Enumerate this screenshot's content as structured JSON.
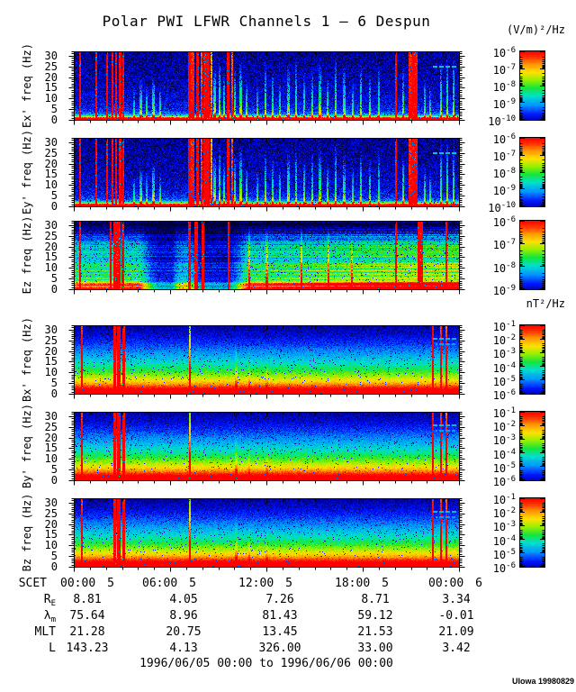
{
  "title": "Polar PWI LFWR Channels 1 — 6 Despun",
  "units": {
    "electric": "(V/m)²/Hz",
    "magnetic": "nT²/Hz"
  },
  "time_axis": {
    "prefix": "SCET",
    "ticks": [
      {
        "time": "00:00",
        "day": "5"
      },
      {
        "time": "06:00",
        "day": "5"
      },
      {
        "time": "12:00",
        "day": "5"
      },
      {
        "time": "18:00",
        "day": "5"
      },
      {
        "time": "00:00",
        "day": "6"
      }
    ]
  },
  "ephemeris": {
    "rows": [
      {
        "label": "R",
        "sub": "E",
        "values": [
          "8.81",
          "4.05",
          "7.26",
          "8.71",
          "3.34"
        ]
      },
      {
        "label": "λ",
        "sub": "m",
        "values": [
          "75.64",
          "8.96",
          "81.43",
          "59.12",
          "-0.01"
        ]
      },
      {
        "label": "MLT",
        "sub": "",
        "values": [
          "21.28",
          "20.75",
          "13.45",
          "21.53",
          "21.09"
        ]
      },
      {
        "label": "L",
        "sub": "",
        "values": [
          "143.23",
          "4.13",
          "326.00",
          "33.00",
          "3.42"
        ]
      }
    ]
  },
  "footer_range": "1996/06/05 00:00 to 1996/06/06 00:00",
  "credit": "UIowa 19980829",
  "chart_data": {
    "type": "heatmap",
    "title": "Polar PWI LFWR Channels 1 — 6 Despun",
    "x_start": "1996/06/05 00:00",
    "x_end": "1996/06/06 00:00",
    "x_tick_labels": [
      "00:00",
      "06:00",
      "12:00",
      "18:00",
      "00:00"
    ],
    "x_minor_tick_hours": 1,
    "ylim": [
      0,
      32
    ],
    "y_ticks": [
      0,
      5,
      10,
      15,
      20,
      25,
      30
    ],
    "colormap": [
      [
        0.0,
        "#000030"
      ],
      [
        0.1,
        "#000096"
      ],
      [
        0.2,
        "#0014ff"
      ],
      [
        0.32,
        "#0096ff"
      ],
      [
        0.44,
        "#00e1c8"
      ],
      [
        0.54,
        "#14e63c"
      ],
      [
        0.64,
        "#96f000"
      ],
      [
        0.74,
        "#ffe100"
      ],
      [
        0.84,
        "#ff9600"
      ],
      [
        0.92,
        "#ff3c00"
      ],
      [
        1.0,
        "#ff0000"
      ]
    ],
    "colorbars": {
      "e": [
        "10^-6",
        "10^-7",
        "10^-8",
        "10^-9",
        "10^-10"
      ],
      "ez": [
        "10^-6",
        "10^-7",
        "10^-8",
        "10^-9"
      ],
      "b": [
        "10^-1",
        "10^-2",
        "10^-3",
        "10^-4",
        "10^-5",
        "10^-6"
      ]
    },
    "profiles": {
      "e": [
        [
          0,
          1.15
        ],
        [
          0.025,
          0.95
        ],
        [
          0.05,
          0.55
        ],
        [
          0.08,
          0.3
        ],
        [
          0.12,
          0.22
        ],
        [
          0.25,
          0.16
        ],
        [
          0.5,
          0.13
        ],
        [
          0.75,
          0.115
        ],
        [
          1,
          0.1
        ]
      ],
      "ez": [
        [
          0,
          1.3
        ],
        [
          0.04,
          1.0
        ],
        [
          0.07,
          0.8
        ],
        [
          0.1,
          0.62
        ],
        [
          0.2,
          0.58
        ],
        [
          0.35,
          0.56
        ],
        [
          0.5,
          0.52
        ],
        [
          0.6,
          0.48
        ],
        [
          0.7,
          0.4
        ],
        [
          0.8,
          0.25
        ],
        [
          0.88,
          0.12
        ],
        [
          1,
          0.06
        ]
      ],
      "b": [
        [
          0,
          1.2
        ],
        [
          0.05,
          1.05
        ],
        [
          0.09,
          0.95
        ],
        [
          0.13,
          0.85
        ],
        [
          0.18,
          0.75
        ],
        [
          0.25,
          0.65
        ],
        [
          0.33,
          0.55
        ],
        [
          0.42,
          0.46
        ],
        [
          0.52,
          0.38
        ],
        [
          0.63,
          0.3
        ],
        [
          0.75,
          0.22
        ],
        [
          0.88,
          0.15
        ],
        [
          1,
          0.11
        ]
      ]
    },
    "tmods": {
      "ez": [
        [
          0,
          0.78
        ],
        [
          0.17,
          0.8
        ],
        [
          0.2,
          0.4
        ],
        [
          0.22,
          0.3
        ],
        [
          0.255,
          0.3
        ],
        [
          0.27,
          0.55
        ],
        [
          0.295,
          0.6
        ],
        [
          0.315,
          0.45
        ],
        [
          0.33,
          0.28
        ],
        [
          0.4,
          0.26
        ],
        [
          0.425,
          0.45
        ],
        [
          0.45,
          0.8
        ],
        [
          0.6,
          0.85
        ],
        [
          0.75,
          0.95
        ],
        [
          0.9,
          1.0
        ],
        [
          1,
          1.0
        ]
      ]
    },
    "hline_sets": {
      "ez": [
        [
          0.065,
          0.3
        ],
        [
          0.105,
          0.22
        ],
        [
          0.155,
          0.18
        ],
        [
          0.21,
          0.15
        ],
        [
          0.27,
          0.12
        ],
        [
          0.34,
          0.1
        ]
      ]
    },
    "dash_sets": {
      "e": [
        [
          0.93,
          0.992,
          0.78,
          0.4
        ]
      ],
      "b": [
        [
          0.93,
          0.995,
          0.82,
          0.38
        ],
        [
          0.94,
          0.99,
          0.74,
          0.34
        ]
      ]
    },
    "stripe_sets": {
      "e": [
        [
          0.016,
          2,
          1.25,
          0
        ],
        [
          0.058,
          2,
          1.25,
          0
        ],
        [
          0.085,
          2,
          1.2,
          0
        ],
        [
          0.1,
          2,
          1.25,
          0
        ],
        [
          0.109,
          2,
          1.1,
          0
        ],
        [
          0.118,
          3,
          1.25,
          0
        ],
        [
          0.127,
          2,
          1.2,
          0
        ],
        [
          0.155,
          2,
          0.4,
          0.45
        ],
        [
          0.172,
          3,
          0.5,
          0.6
        ],
        [
          0.188,
          2,
          0.45,
          0.5
        ],
        [
          0.205,
          3,
          0.55,
          0.65
        ],
        [
          0.222,
          2,
          0.4,
          0.5
        ],
        [
          0.298,
          3,
          1.0,
          0
        ],
        [
          0.308,
          4,
          0.85,
          0
        ],
        [
          0.32,
          3,
          1.2,
          0
        ],
        [
          0.33,
          2,
          0.8,
          0
        ],
        [
          0.338,
          3,
          1.25,
          0
        ],
        [
          0.347,
          4,
          1.0,
          0
        ],
        [
          0.356,
          2,
          0.7,
          0
        ],
        [
          0.365,
          3,
          0.6,
          0.8
        ],
        [
          0.378,
          2,
          0.5,
          0.95
        ],
        [
          0.39,
          2,
          0.45,
          0.7
        ],
        [
          0.4,
          3,
          1.25,
          0
        ],
        [
          0.409,
          2,
          0.8,
          0
        ],
        [
          0.418,
          2,
          0.5,
          0.8
        ],
        [
          0.432,
          3,
          0.55,
          0.9
        ],
        [
          0.447,
          2,
          0.45,
          0.6
        ],
        [
          0.475,
          2,
          0.4,
          0.55
        ],
        [
          0.497,
          2,
          0.5,
          0.9
        ],
        [
          0.515,
          2,
          0.45,
          0.75
        ],
        [
          0.535,
          2,
          0.4,
          0.6
        ],
        [
          0.555,
          3,
          0.5,
          0.85
        ],
        [
          0.575,
          2,
          0.45,
          0.95
        ],
        [
          0.597,
          2,
          0.5,
          0.7
        ],
        [
          0.617,
          2,
          0.45,
          0.8
        ],
        [
          0.638,
          3,
          0.5,
          0.9
        ],
        [
          0.658,
          2,
          0.45,
          0.65
        ],
        [
          0.678,
          2,
          0.5,
          0.95
        ],
        [
          0.7,
          3,
          0.45,
          0.8
        ],
        [
          0.722,
          2,
          0.4,
          0.6
        ],
        [
          0.745,
          2,
          0.5,
          0.85
        ],
        [
          0.768,
          2,
          0.45,
          0.7
        ],
        [
          0.79,
          2,
          0.4,
          0.9
        ],
        [
          0.836,
          2,
          1.25,
          0
        ],
        [
          0.855,
          2,
          0.5,
          0.8
        ],
        [
          0.872,
          3,
          0.85,
          0
        ],
        [
          0.88,
          5,
          1.15,
          0
        ],
        [
          0.889,
          3,
          0.9,
          0
        ],
        [
          0.91,
          2,
          0.45,
          0.6
        ],
        [
          0.925,
          2,
          0.4,
          0.5
        ],
        [
          0.952,
          2,
          0.45,
          1
        ],
        [
          0.968,
          2,
          0.5,
          1
        ],
        [
          0.985,
          2,
          0.45,
          1
        ]
      ],
      "ez": [
        [
          0.016,
          2,
          1.3,
          0
        ],
        [
          0.095,
          2,
          1.3,
          0
        ],
        [
          0.107,
          4,
          1.3,
          0
        ],
        [
          0.116,
          4,
          1.3,
          0
        ],
        [
          0.126,
          3,
          1.3,
          0
        ],
        [
          0.298,
          3,
          1.3,
          0
        ],
        [
          0.316,
          4,
          1.2,
          0
        ],
        [
          0.335,
          3,
          1.3,
          0
        ],
        [
          0.4,
          2,
          1.2,
          0
        ],
        [
          0.455,
          2,
          0.55,
          0.95
        ],
        [
          0.5,
          2,
          0.5,
          0.9
        ],
        [
          0.59,
          2,
          0.55,
          0.95
        ],
        [
          0.66,
          2,
          0.5,
          0.9
        ],
        [
          0.72,
          2,
          0.45,
          0.8
        ],
        [
          0.836,
          2,
          1.3,
          0
        ],
        [
          0.895,
          4,
          1.25,
          0
        ],
        [
          0.903,
          3,
          1.0,
          0
        ],
        [
          0.965,
          2,
          1.2,
          0
        ]
      ],
      "b": [
        [
          0.02,
          2,
          0.8,
          0
        ],
        [
          0.104,
          3,
          0.85,
          0
        ],
        [
          0.116,
          4,
          1.0,
          0
        ],
        [
          0.128,
          3,
          0.85,
          0
        ],
        [
          0.3,
          2,
          0.5,
          0
        ],
        [
          0.42,
          3,
          0.15,
          0.8
        ],
        [
          0.455,
          2,
          0.12,
          0.7
        ],
        [
          0.5,
          2,
          0.1,
          0.6
        ],
        [
          0.93,
          2,
          0.85,
          0
        ],
        [
          0.953,
          2,
          0.8,
          0
        ],
        [
          0.966,
          2,
          0.75,
          0
        ]
      ]
    },
    "panels": [
      {
        "id": "ex",
        "ylabel": "Ex' freq (Hz)",
        "unit": "(V/m)²/Hz",
        "colorbar": "e",
        "render": {
          "seed": 11,
          "profile": "e",
          "stripes": "e",
          "dashes": "e",
          "noise": 0.09,
          "speckle": 0.1
        }
      },
      {
        "id": "ey",
        "ylabel": "Ey' freq (Hz)",
        "unit": "(V/m)²/Hz",
        "colorbar": "e",
        "render": {
          "seed": 23,
          "profile": "e",
          "stripes": "e",
          "dashes": "e",
          "noise": 0.09,
          "speckle": 0.1
        }
      },
      {
        "id": "ez",
        "ylabel": "Ez freq (Hz)",
        "unit": "(V/m)²/Hz",
        "colorbar": "ez",
        "render": {
          "seed": 37,
          "profile": "ez",
          "stripes": "ez",
          "tmod": "ez",
          "hlines": "ez",
          "noise": 0.07,
          "speckle": 0.07,
          "rowNoise": 0.12
        }
      },
      {
        "id": "bx",
        "ylabel": "Bx' freq (Hz)",
        "unit": "nT²/Hz",
        "colorbar": "b",
        "render": {
          "seed": 51,
          "profile": "b",
          "stripes": "b",
          "dashes": "b",
          "noise": 0.05,
          "speckle": 0.05
        }
      },
      {
        "id": "by",
        "ylabel": "By' freq (Hz)",
        "unit": "nT²/Hz",
        "colorbar": "b",
        "render": {
          "seed": 67,
          "profile": "b",
          "stripes": "b",
          "dashes": "b",
          "noise": 0.05,
          "speckle": 0.05
        }
      },
      {
        "id": "bz",
        "ylabel": "Bz freq (Hz)",
        "unit": "nT²/Hz",
        "colorbar": "b",
        "render": {
          "seed": 83,
          "profile": "b",
          "stripes": "b",
          "dashes": "b",
          "noise": 0.05,
          "speckle": 0.05
        }
      }
    ]
  }
}
